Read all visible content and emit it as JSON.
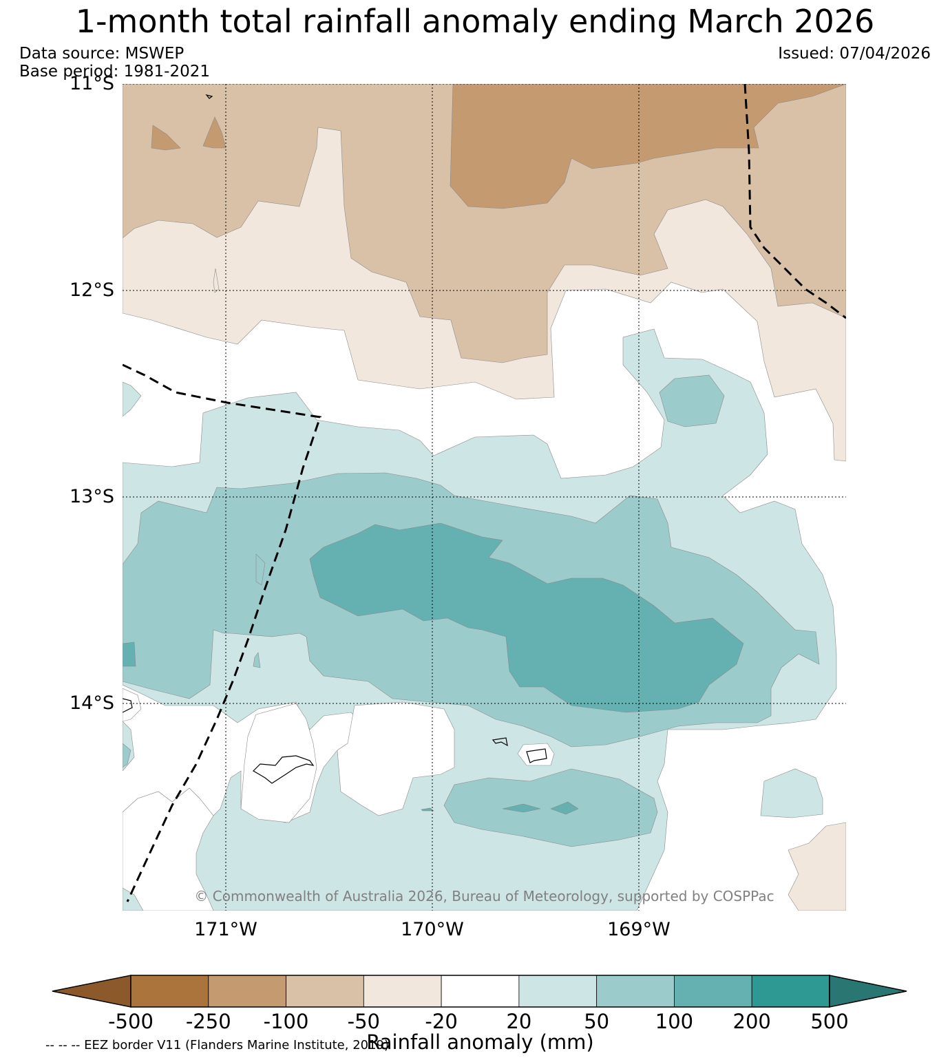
{
  "title": "1-month total rainfall anomaly ending March 2026",
  "data_source": "Data source: MSWEP",
  "base_period": "Base period: 1981-2021",
  "issued": "Issued: 07/04/2026",
  "lat_labels": [
    "11°S",
    "12°S",
    "13°S",
    "14°S"
  ],
  "lon_labels": [
    "171°W",
    "170°W",
    "169°W"
  ],
  "copyright": "© Commonwealth of Australia 2026, Bureau of Meteorology, supported by COSPPac",
  "colorbar": {
    "title": "Rainfall anomaly (mm)",
    "labels": [
      "-500",
      "-250",
      "-100",
      "-50",
      "-20",
      "20",
      "50",
      "100",
      "200",
      "500"
    ],
    "colors": [
      "#8c5a2a",
      "#ac743d",
      "#c49b71",
      "#d9c1a8",
      "#f1e7dd",
      "#ffffff",
      "#cde5e4",
      "#9ccbcb",
      "#65b0b1",
      "#2e9893",
      "#297673"
    ]
  },
  "eez_note": "-- -- -- EEZ border V11 (Flanders Marine Institute, 2019)"
}
